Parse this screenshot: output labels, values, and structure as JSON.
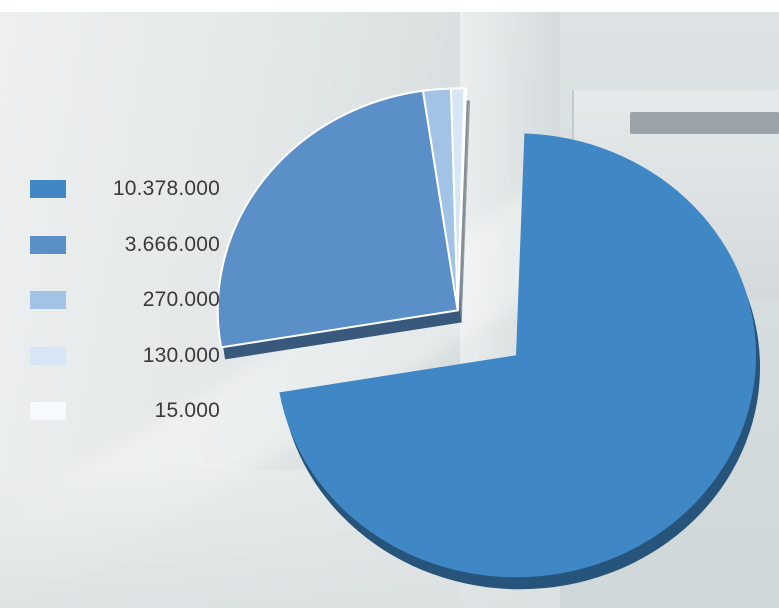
{
  "chart_data": {
    "type": "pie",
    "exploded": true,
    "three_d": true,
    "categories": [
      "10.378.000",
      "3.666.000",
      "270.000",
      "130.000",
      "15.000"
    ],
    "values": [
      10378000,
      3666000,
      270000,
      130000,
      15000
    ],
    "colors": [
      "#3f88c5",
      "#5b8fc8",
      "#a3c3e6",
      "#d6e6f5",
      "#f7fafd"
    ],
    "legend_position": "left",
    "title": ""
  }
}
